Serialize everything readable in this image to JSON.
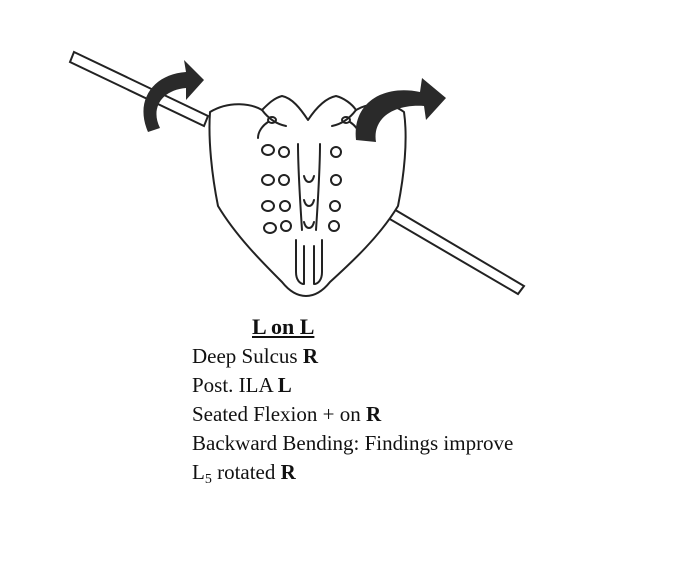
{
  "diagram": {
    "title": "L on L",
    "findings": [
      {
        "label": "Deep Sulcus",
        "side": "R"
      },
      {
        "label": "Post. ILA",
        "side": "L"
      },
      {
        "label": "Seated Flexion + on",
        "side": "R"
      },
      {
        "label": "Backward Bending: Findings improve",
        "side": ""
      },
      {
        "label": "L",
        "subscript": "5",
        "label_after": " rotated",
        "side": "R"
      }
    ],
    "colors": {
      "ink": "#111111",
      "arrow": "#2a2a2a",
      "background": "#ffffff"
    },
    "icons": [
      "sacrum-drawing",
      "oblique-axis-rod",
      "rotation-arrow"
    ]
  }
}
